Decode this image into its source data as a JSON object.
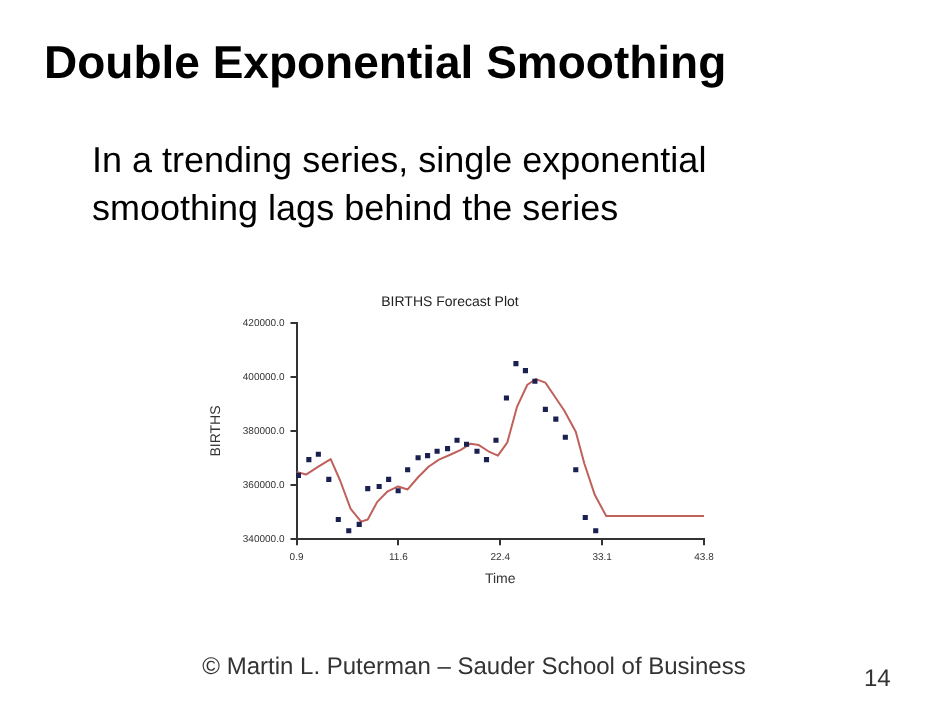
{
  "chart_data": {
    "type": "scatter",
    "title": "BIRTHS Forecast Plot",
    "xlabel": "Time",
    "ylabel": "BIRTHS",
    "annotations": [
      "Double Exponential Smoothing",
      "In a trending series, single exponential smoothing lags behind the series",
      "© Martin L. Puterman – Sauder School of Business",
      "14"
    ],
    "xlim": [
      0.9,
      43.8
    ],
    "xticks": [
      0.9,
      {
        "value": 11.625,
        "label": "11.6"
      },
      {
        "value": 22.35,
        "label": "22.4"
      },
      {
        "value": 33.075,
        "label": "33.1"
      },
      43.8
    ],
    "ylim": [
      340000,
      420000
    ],
    "yticks": [
      {
        "value": 340000,
        "label": "340000.0"
      },
      {
        "value": 360000,
        "label": "360000.0"
      },
      {
        "value": 380000,
        "label": "380000.0"
      },
      {
        "value": 400000,
        "label": "400000.0"
      },
      {
        "value": 420000,
        "label": "420000.0"
      }
    ],
    "grid": false,
    "legend": false,
    "series": [
      {
        "type": "scatter",
        "marker": "square",
        "color": "#1a2050",
        "x": [
          1.1,
          2.2,
          3.2,
          4.3,
          5.3,
          6.4,
          7.5,
          8.4,
          9.6,
          10.6,
          11.6,
          12.6,
          13.7,
          14.7,
          15.7,
          16.8,
          17.8,
          18.8,
          19.9,
          20.9,
          21.9,
          23.0,
          24.0,
          25.0,
          26.0,
          27.1,
          28.2,
          29.2,
          30.3,
          31.3,
          32.4
        ],
        "values": [
          363600,
          369400,
          371400,
          362100,
          347300,
          343100,
          345500,
          358700,
          359500,
          362100,
          357900,
          365700,
          370100,
          370900,
          372500,
          373500,
          376600,
          375100,
          372500,
          369400,
          376600,
          392200,
          404900,
          402300,
          398400,
          388000,
          384400,
          377700,
          365700,
          348000,
          343100
        ]
      },
      {
        "type": "line",
        "marker": "none",
        "color": "#c0605a",
        "x": [
          0.9,
          1.9,
          3.2,
          4.5,
          5.5,
          6.6,
          7.7,
          8.4,
          9.4,
          10.5,
          11.6,
          12.6,
          13.7,
          14.8,
          15.9,
          17.2,
          18.2,
          19.2,
          20.1,
          21.1,
          22.1,
          23.1,
          24.1,
          25.2,
          26.1,
          27.1,
          28.0,
          29.1,
          30.3,
          31.2,
          32.3,
          33.5,
          43.8
        ],
        "values": [
          364900,
          363900,
          366800,
          369600,
          361600,
          351200,
          346500,
          347300,
          353800,
          357700,
          359500,
          358400,
          362900,
          366800,
          369400,
          371400,
          373000,
          375300,
          374800,
          372500,
          370900,
          375800,
          388800,
          397100,
          399200,
          397900,
          393200,
          387500,
          379700,
          368000,
          356400,
          348600,
          348600
        ]
      }
    ]
  }
}
